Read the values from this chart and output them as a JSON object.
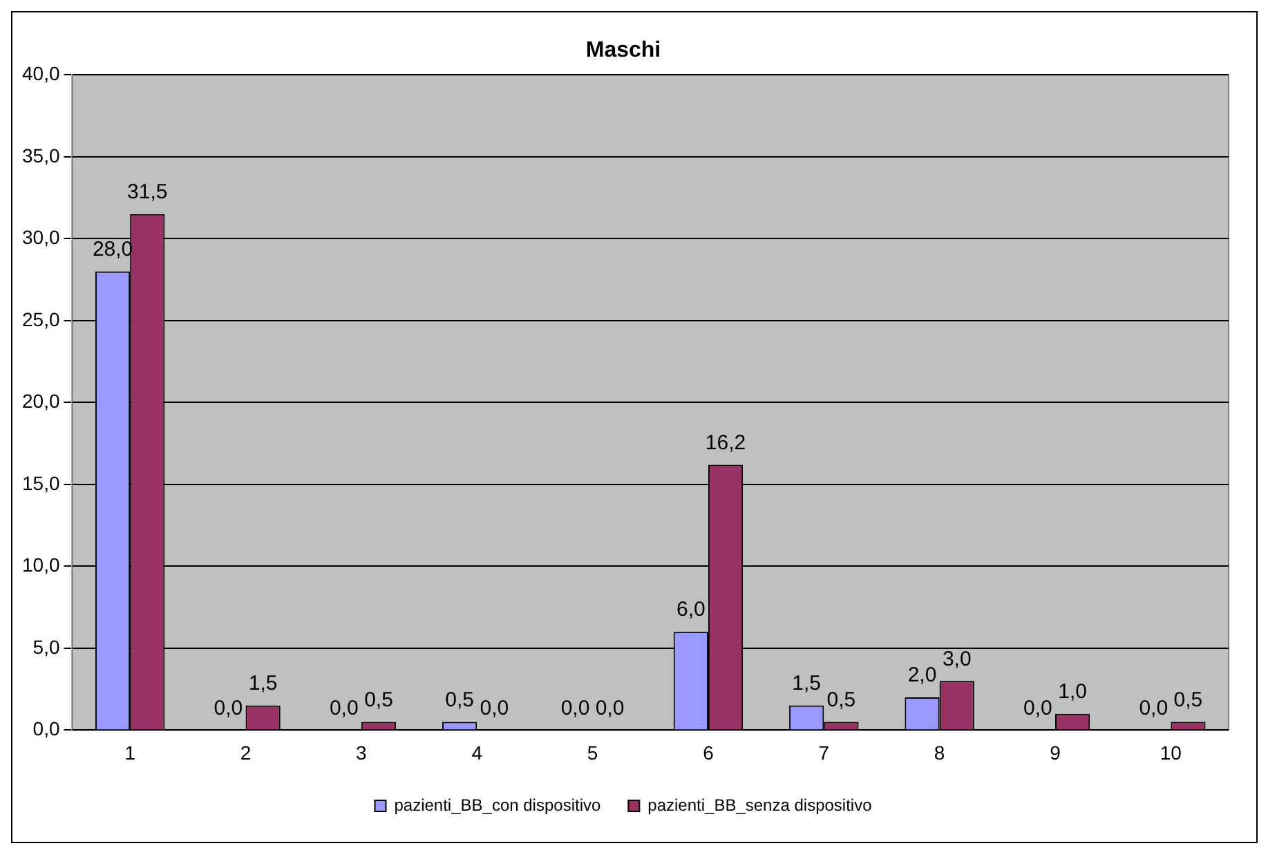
{
  "chart_data": {
    "type": "bar",
    "title": "Maschi",
    "categories": [
      "1",
      "2",
      "3",
      "4",
      "5",
      "6",
      "7",
      "8",
      "9",
      "10"
    ],
    "series": [
      {
        "name": "pazienti_BB_con dispositivo",
        "color": "#9999ff",
        "values": [
          28.0,
          0.0,
          0.0,
          0.5,
          0.0,
          6.0,
          1.5,
          2.0,
          0.0,
          0.0
        ],
        "value_labels": [
          "28,0",
          "0,0",
          "0,0",
          "0,5",
          "0,0",
          "6,0",
          "1,5",
          "2,0",
          "0,0",
          "0,0"
        ]
      },
      {
        "name": "pazienti_BB_senza dispositivo",
        "color": "#993366",
        "values": [
          31.5,
          1.5,
          0.5,
          0.0,
          0.0,
          16.2,
          0.5,
          3.0,
          1.0,
          0.5
        ],
        "value_labels": [
          "31,5",
          "1,5",
          "0,5",
          "0,0",
          "0,0",
          "16,2",
          "0,5",
          "3,0",
          "1,0",
          "0,5"
        ]
      }
    ],
    "ylim": [
      0,
      40
    ],
    "yticks": [
      {
        "value": 0,
        "label": "0,0"
      },
      {
        "value": 5,
        "label": "5,0"
      },
      {
        "value": 10,
        "label": "10,0"
      },
      {
        "value": 15,
        "label": "15,0"
      },
      {
        "value": 20,
        "label": "20,0"
      },
      {
        "value": 25,
        "label": "25,0"
      },
      {
        "value": 30,
        "label": "30,0"
      },
      {
        "value": 35,
        "label": "35,0"
      },
      {
        "value": 40,
        "label": "40,0"
      }
    ],
    "grid": "y",
    "legend": "bottom"
  }
}
